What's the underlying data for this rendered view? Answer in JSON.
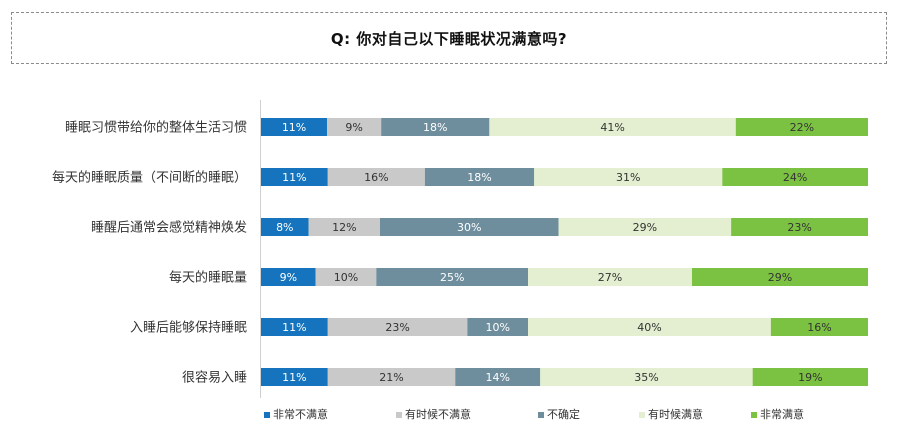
{
  "header": {
    "question": "Q:  你对自己以下睡眠状况满意吗?"
  },
  "chart_data": {
    "type": "bar",
    "orientation": "horizontal",
    "stacked": true,
    "percent_stacked": true,
    "categories": [
      "睡眠习惯带给你的整体生活习惯",
      "每天的睡眠质量（不间断的睡眠）",
      "睡醒后通常会感觉精神焕发",
      "每天的睡眠量",
      "入睡后能够保持睡眠",
      "很容易入睡"
    ],
    "series": [
      {
        "name": "非常不满意",
        "color": "#1574bd",
        "label_color": "#ffffff",
        "values": [
          11,
          11,
          8,
          9,
          11,
          11
        ]
      },
      {
        "name": "有时候不满意",
        "color": "#c9c9c9",
        "label_color": "#333333",
        "values": [
          9,
          16,
          12,
          10,
          23,
          21
        ]
      },
      {
        "name": "不确定",
        "color": "#6e8d9d",
        "label_color": "#ffffff",
        "values": [
          18,
          18,
          30,
          25,
          10,
          14
        ]
      },
      {
        "name": "有时候满意",
        "color": "#e3efd0",
        "label_color": "#333333",
        "values": [
          41,
          31,
          29,
          27,
          40,
          35
        ]
      },
      {
        "name": "非常满意",
        "color": "#7cc242",
        "label_color": "#333333",
        "values": [
          22,
          24,
          23,
          29,
          16,
          19
        ]
      }
    ],
    "value_suffix": "%",
    "legend_position": "bottom",
    "grid": false
  }
}
